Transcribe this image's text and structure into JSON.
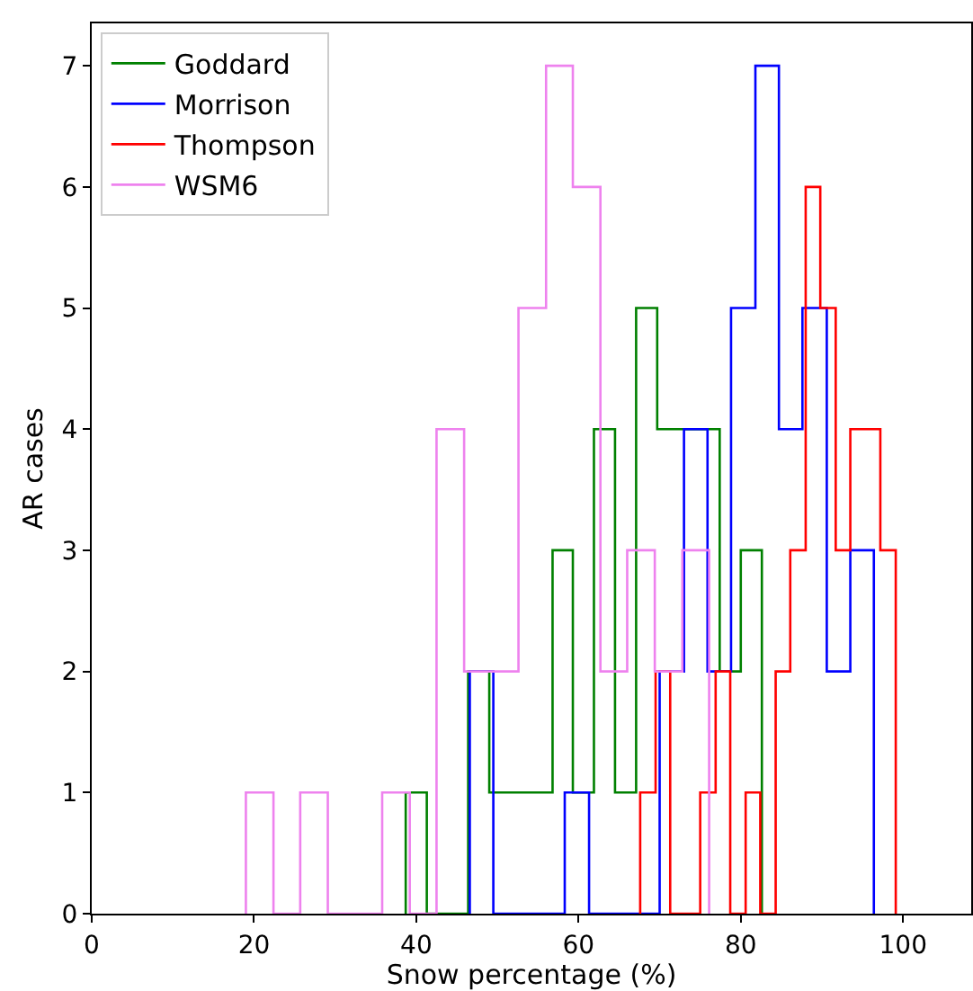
{
  "chart_data": {
    "type": "step",
    "xlabel": "Snow percentage (%)",
    "ylabel": "AR cases",
    "series": [
      {
        "name": "Goddard",
        "color": "#008000",
        "x": [
          38.7,
          38.7,
          41.3,
          43.9,
          46.4,
          49.0,
          51.6,
          54.2,
          56.8,
          59.3,
          61.9,
          64.5,
          67.1,
          69.7,
          72.2,
          74.8,
          77.4,
          80.0,
          82.6
        ],
        "values": [
          0,
          1,
          0,
          0,
          2,
          1,
          1,
          1,
          3,
          1,
          4,
          1,
          5,
          4,
          4,
          4,
          2,
          3,
          0
        ]
      },
      {
        "name": "Morrison",
        "color": "#0000ff",
        "x": [
          46.6,
          46.6,
          49.5,
          52.5,
          55.4,
          58.3,
          61.3,
          64.2,
          67.1,
          70.0,
          73.0,
          75.9,
          78.8,
          81.8,
          84.7,
          87.6,
          90.6,
          93.5,
          96.4
        ],
        "values": [
          0,
          2,
          0,
          0,
          0,
          1,
          0,
          0,
          0,
          2,
          4,
          2,
          5,
          7,
          4,
          5,
          2,
          3,
          0
        ]
      },
      {
        "name": "Thompson",
        "color": "#ff0000",
        "x": [
          67.6,
          67.6,
          69.5,
          71.3,
          73.2,
          75.0,
          76.9,
          78.7,
          80.6,
          82.4,
          84.3,
          86.1,
          88.0,
          89.8,
          91.7,
          93.5,
          95.4,
          97.2,
          99.1
        ],
        "values": [
          0,
          1,
          2,
          0,
          0,
          1,
          2,
          0,
          1,
          0,
          2,
          3,
          6,
          5,
          3,
          4,
          4,
          3,
          0
        ]
      },
      {
        "name": "WSM6",
        "color": "#ee82ee",
        "x": [
          19.0,
          19.0,
          22.4,
          25.7,
          29.1,
          32.4,
          35.8,
          39.2,
          42.5,
          45.9,
          49.2,
          52.6,
          56.0,
          59.3,
          62.7,
          66.0,
          69.4,
          72.8,
          76.1
        ],
        "values": [
          0,
          1,
          0,
          1,
          0,
          0,
          1,
          0,
          4,
          2,
          2,
          5,
          7,
          6,
          2,
          3,
          2,
          3,
          0
        ]
      }
    ],
    "xlim": [
      0,
      108.4
    ],
    "xticks": [
      0,
      20,
      40,
      60,
      80,
      100
    ],
    "ylim": [
      0,
      7.35
    ],
    "yticks": [
      0,
      1,
      2,
      3,
      4,
      5,
      6,
      7
    ],
    "legend": "top left"
  }
}
